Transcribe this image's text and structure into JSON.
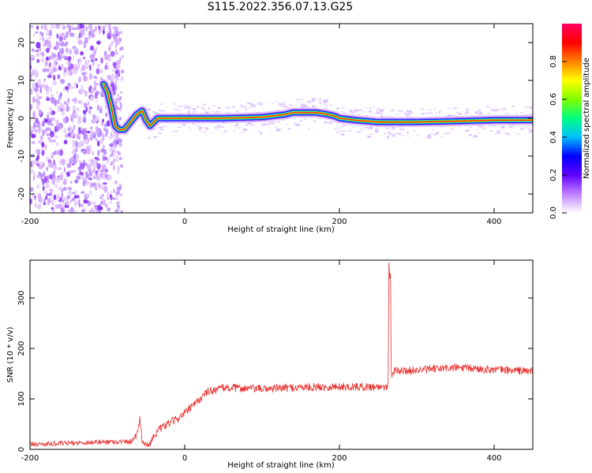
{
  "title": "S115.2022.356.07.13.G25",
  "chart_data": [
    {
      "type": "heatmap",
      "xlabel": "Height of straight line (km)",
      "ylabel": "Frequency (Hz)",
      "xlim": [
        -200,
        450
      ],
      "ylim": [
        -25,
        25
      ],
      "x_ticks": [
        -200,
        0,
        200,
        400
      ],
      "y_ticks": [
        -20,
        -10,
        0,
        10,
        20
      ],
      "colorbar": {
        "label": "Normalized spectral amplitude",
        "range": [
          0,
          1
        ],
        "ticks": [
          "0.0",
          "0.2",
          "0.4",
          "0.6",
          "0.8"
        ],
        "colors": [
          "#ffffff",
          "#c080ff",
          "#6000ff",
          "#0000ff",
          "#00c0ff",
          "#00ff80",
          "#80ff00",
          "#ffff00",
          "#ff8000",
          "#ff0000",
          "#ff0060"
        ]
      },
      "noise_region_x": [
        -200,
        -85
      ],
      "ridge": {
        "x": [
          -105,
          -100,
          -95,
          -90,
          -85,
          -78,
          -70,
          -62,
          -55,
          -50,
          -45,
          -40,
          -35,
          -25,
          0,
          50,
          100,
          130,
          140,
          150,
          170,
          185,
          195,
          200,
          220,
          250,
          300,
          350,
          400,
          450
        ],
        "y": [
          9,
          7,
          3,
          -2,
          -3,
          -3,
          -1,
          1,
          2,
          -0.5,
          -2,
          -1,
          0,
          0,
          0,
          0,
          0.3,
          1,
          1.5,
          1.5,
          1.5,
          1,
          0.5,
          0,
          -0.5,
          -1,
          -1,
          -0.8,
          -0.5,
          -0.5
        ]
      }
    },
    {
      "type": "line",
      "xlabel": "Height of straight line (km)",
      "ylabel": "SNR (10 * v/v)",
      "xlim": [
        -200,
        450
      ],
      "ylim": [
        0,
        375
      ],
      "x_ticks": [
        -200,
        0,
        200,
        400
      ],
      "y_ticks": [
        0,
        100,
        200,
        300
      ],
      "color": "#e8302f",
      "series": [
        {
          "x": [
            -200,
            -150,
            -100,
            -70,
            -62,
            -58,
            -55,
            -52,
            -45,
            -40,
            -30,
            -20,
            -10,
            0,
            10,
            20,
            30,
            50,
            100,
            150,
            200,
            250,
            263,
            264,
            265,
            266,
            267,
            268,
            270,
            300,
            350,
            400,
            450
          ],
          "y": [
            10,
            12,
            15,
            15,
            30,
            60,
            20,
            10,
            10,
            28,
            42,
            52,
            60,
            72,
            85,
            100,
            115,
            122,
            120,
            123,
            124,
            124,
            125,
            370,
            340,
            350,
            158,
            150,
            155,
            157,
            162,
            158,
            155
          ]
        }
      ]
    }
  ]
}
